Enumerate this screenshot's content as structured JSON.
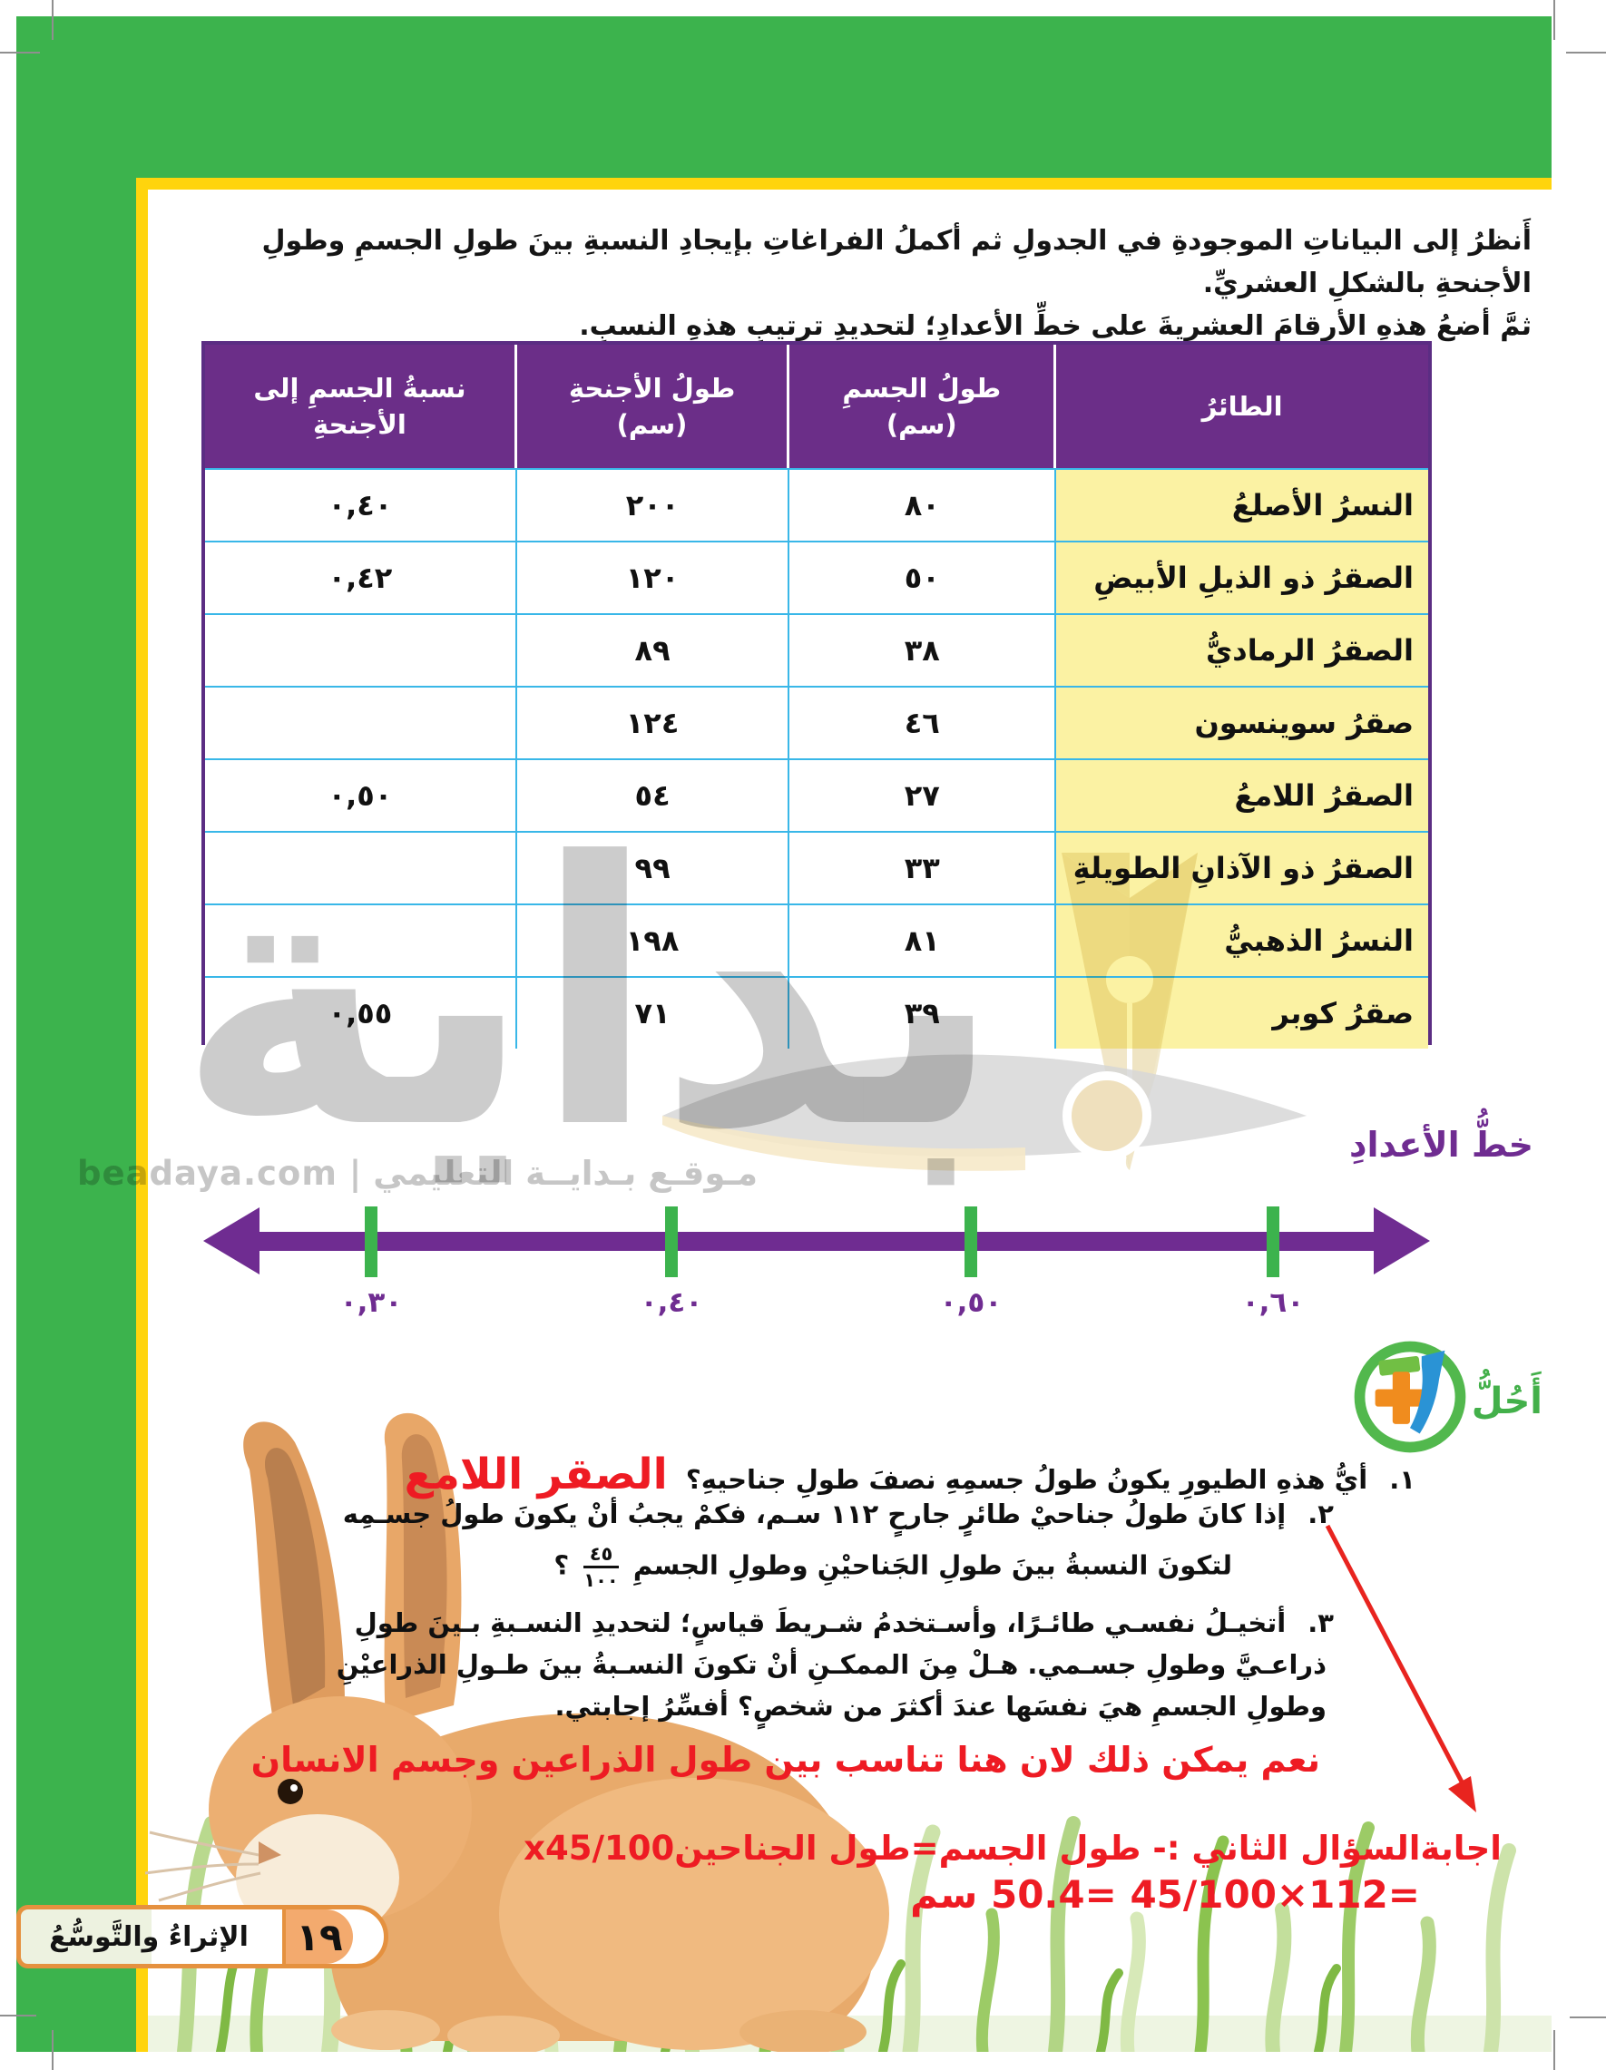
{
  "intro": {
    "line1": "أَنظرُ إلى البياناتِ الموجودةِ في الجدولِ ثم أكملُ الفراغاتِ بإيجادِ النسبةِ بينَ طولِ الجسمِ وطولِ الأجنحةِ بالشكلِ العشريِّ.",
    "line2": "ثمَّ أضعُ هذهِ الأرقامَ العشريةَ على خطِّ الأعدادِ؛ لتحديدِ ترتيبِ هذهِ النسبِ."
  },
  "table": {
    "headers": {
      "bird": "الطائرُ",
      "body_line1": "طولُ الجسمِ",
      "body_line2": "(سم)",
      "wings_line1": "طولُ الأجنحةِ",
      "wings_line2": "(سم)",
      "ratio": "نسبةُ الجسمِ إلى الأجنحةِ"
    },
    "rows": [
      {
        "bird": "النسرُ الأصلعُ",
        "body": "٨٠",
        "wings": "٢٠٠",
        "ratio": "٠,٤٠"
      },
      {
        "bird": "الصقرُ ذو الذيلِ الأبيضِ",
        "body": "٥٠",
        "wings": "١٢٠",
        "ratio": "٠,٤٢"
      },
      {
        "bird": "الصقرُ الرماديُّ",
        "body": "٣٨",
        "wings": "٨٩",
        "ratio": ""
      },
      {
        "bird": "صقرُ سوينسون",
        "body": "٤٦",
        "wings": "١٢٤",
        "ratio": ""
      },
      {
        "bird": "الصقرُ اللامعُ",
        "body": "٢٧",
        "wings": "٥٤",
        "ratio": "٠,٥٠"
      },
      {
        "bird": "الصقرُ ذو الآذانِ الطويلةِ",
        "body": "٣٣",
        "wings": "٩٩",
        "ratio": ""
      },
      {
        "bird": "النسرُ الذهبيُّ",
        "body": "٨١",
        "wings": "١٩٨",
        "ratio": ""
      },
      {
        "bird": "صقرُ كوبر",
        "body": "٣٩",
        "wings": "٧١",
        "ratio": "٠,٥٥"
      }
    ]
  },
  "number_line": {
    "title": "خطُّ الأعدادِ",
    "labels": [
      "٠,٣٠",
      "٠,٤٠",
      "٠,٥٠",
      "٠,٦٠"
    ]
  },
  "solve": {
    "title": "أَحُلُّ",
    "q1_num": "١.",
    "q1_text": "أيُّ هذهِ الطيورِ يكونُ طولُ جسمِهِ نصفَ طولِ جناحيهِ؟",
    "q1_answer": "الصقر اللامع",
    "q2_num": "٢.",
    "q2_line1": "إذا كانَ طولُ جناحيْ طائرٍ جارحٍ ١١٢ سـم، فكمْ يجبُ أنْ يكونَ طولُ جسـمِه",
    "q2_line2": "لتكونَ النسبةُ بينَ طولِ الجَناحيْنِ وطولِ الجسمِ",
    "q2_frac_num": "٤٥",
    "q2_frac_den": "١٠٠",
    "q2_mark": "؟",
    "q3_num": "٣.",
    "q3_line1": "أتخيـلُ نفسـي طائـرًا، وأسـتخدمُ شـريطَ قياسٍ؛ لتحديدِ النسـبةِ بـينَ طولِ",
    "q3_line2": "ذراعـيَّ وطولِ جسـمي. هـلْ مِنَ الممكـنِ أنْ تكونَ النسـبةُ بينَ طـولِ الذراعيْنِ",
    "q3_line3": "وطولِ الجسمِ هيَ نفسَها عندَ أكثرَ من شخصٍ؟ أفسِّرُ إجابتي.",
    "q3_answer": "نعم يمكن ذلك لان هنا تناسب بين طول الذراعين وجسم الانسان",
    "q2_answer_line1": "اجابةالسؤال الثاني :- طول الجسم=طول الجناحينx45/100",
    "q2_answer_line2": "=112×45/100 =50.4 سم"
  },
  "watermark": {
    "brand": "بداية",
    "caption": "مـوقـع بـدايــة التعليمي | beadaya.com"
  },
  "footer": {
    "label": "الإثراءُ والتَّوسُّعُ",
    "page_number": "١٩"
  },
  "colors": {
    "green": "#3cb34d",
    "yellow": "#ffd40d",
    "header_purple": "#6b2e88",
    "line_purple": "#6f2c91",
    "grid_cyan": "#39b7e8",
    "cell_yellow": "#fbf2a3",
    "answer_red": "#ee1b23",
    "footer_orange": "#e5913f"
  }
}
